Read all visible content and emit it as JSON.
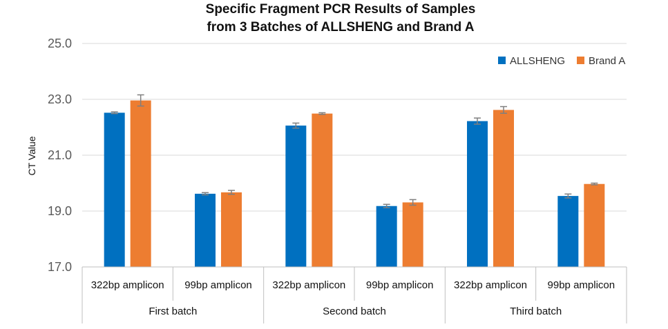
{
  "chart_data": {
    "type": "bar",
    "title_lines": [
      "Specific Fragment PCR Results of Samples",
      "from 3 Batches of ALLSHENG and Brand A"
    ],
    "ylabel": "CT Value",
    "xlabel": "",
    "ylim": [
      17.0,
      25.0
    ],
    "yticks": [
      "17.0",
      "19.0",
      "21.0",
      "23.0",
      "25.0"
    ],
    "grid": true,
    "legend_position": "top-right",
    "groups": [
      "First batch",
      "Second batch",
      "Third batch"
    ],
    "categories": [
      "322bp amplicon",
      "99bp amplicon",
      "322bp amplicon",
      "99bp amplicon",
      "322bp amplicon",
      "99bp amplicon"
    ],
    "series": [
      {
        "name": "ALLSHENG",
        "color": "#0070C0",
        "values": [
          22.52,
          19.62,
          22.06,
          19.18,
          22.22,
          19.54
        ],
        "errors": [
          0.03,
          0.04,
          0.09,
          0.06,
          0.11,
          0.07
        ]
      },
      {
        "name": "Brand A",
        "color": "#ED7D31",
        "values": [
          22.96,
          19.67,
          22.49,
          19.31,
          22.62,
          19.97
        ],
        "errors": [
          0.2,
          0.07,
          0.03,
          0.1,
          0.12,
          0.03
        ]
      }
    ]
  }
}
